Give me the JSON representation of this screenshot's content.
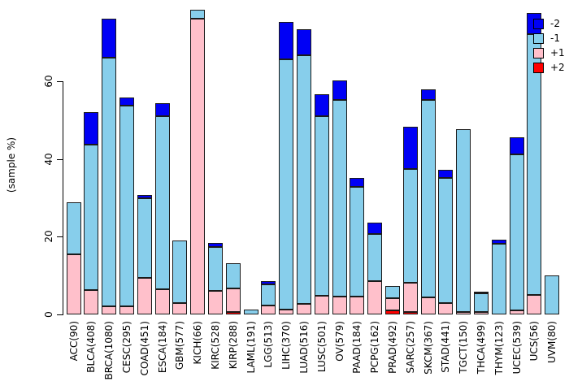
{
  "chart_data": {
    "type": "bar",
    "stacked": true,
    "title": "",
    "xlabel": "",
    "ylabel": "(sample %)",
    "yticks": [
      0,
      20,
      40,
      60
    ],
    "ylim": [
      0,
      80
    ],
    "grid": false,
    "legend_position": "top-right",
    "stack_order_bottom_to_top": [
      "+2",
      "+1",
      "-1",
      "-2"
    ],
    "categories": [
      "ACC(90)",
      "BLCA(408)",
      "BRCA(1080)",
      "CESC(295)",
      "COAD(451)",
      "ESCA(184)",
      "GBM(577)",
      "KICH(66)",
      "KIRC(528)",
      "KIRP(288)",
      "LAML(191)",
      "LGG(513)",
      "LIHC(370)",
      "LUAD(516)",
      "LUSC(501)",
      "OV(579)",
      "PAAD(184)",
      "PCPG(162)",
      "PRAD(492)",
      "SARC(257)",
      "SKCM(367)",
      "STAD(441)",
      "TGCT(150)",
      "THCA(499)",
      "THYM(123)",
      "UCEC(539)",
      "UCS(56)",
      "UVM(80)"
    ],
    "series": [
      {
        "name": "+2",
        "color": "#ff0000",
        "values": [
          0,
          0,
          0,
          0,
          0,
          0,
          0,
          0,
          0,
          0.6,
          0,
          0,
          0,
          0,
          0,
          0,
          0,
          0,
          1.0,
          0.7,
          0,
          0,
          0,
          0,
          0,
          0,
          0,
          0
        ]
      },
      {
        "name": "+1",
        "color": "#ffc0cb",
        "values": [
          15.5,
          6.3,
          2.1,
          2.0,
          9.5,
          6.5,
          3.0,
          76.0,
          6.0,
          6.0,
          0,
          2.3,
          1.2,
          2.8,
          4.8,
          4.5,
          4.5,
          8.5,
          3.2,
          7.4,
          4.4,
          2.9,
          0.6,
          0.6,
          0,
          1.0,
          5.1,
          0
        ]
      },
      {
        "name": "-1",
        "color": "#87ceeb",
        "values": [
          13.3,
          37.3,
          63.9,
          51.8,
          20.3,
          44.5,
          16.0,
          2.3,
          11.4,
          6.5,
          1.2,
          5.5,
          64.4,
          63.9,
          46.2,
          50.6,
          28.3,
          12.3,
          3.2,
          29.4,
          50.7,
          32.3,
          47.0,
          4.8,
          18.2,
          40.1,
          67.1,
          10.0
        ]
      },
      {
        "name": "-2",
        "color": "#0000f5",
        "values": [
          0,
          8.4,
          10.0,
          2.0,
          1.0,
          3.4,
          0,
          0,
          1.0,
          0,
          0,
          0.7,
          9.6,
          6.7,
          5.6,
          5.1,
          2.3,
          2.8,
          0,
          10.7,
          2.9,
          2.0,
          0,
          0.4,
          1.0,
          4.4,
          5.3,
          0
        ]
      }
    ],
    "legend": [
      {
        "label": "-2",
        "color": "#0000f5"
      },
      {
        "label": "-1",
        "color": "#87ceeb"
      },
      {
        "label": "+1",
        "color": "#ffc0cb"
      },
      {
        "label": "+2",
        "color": "#ff0000"
      }
    ]
  }
}
